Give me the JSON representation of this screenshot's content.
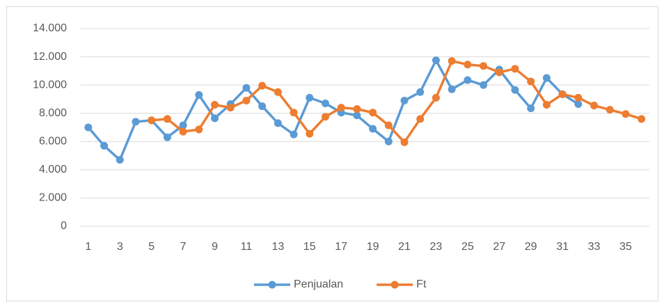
{
  "chart_data": {
    "type": "line",
    "categories": [
      "1",
      null,
      "3",
      null,
      "5",
      null,
      "7",
      null,
      "9",
      null,
      "11",
      null,
      "13",
      null,
      "15",
      null,
      "17",
      null,
      "19",
      null,
      "21",
      null,
      "23",
      null,
      "25",
      null,
      "27",
      null,
      "29",
      null,
      "31",
      null,
      "33",
      null,
      "35",
      null
    ],
    "series": [
      {
        "name": "Penjualan",
        "color": "#5b9bd5",
        "values": [
          7000,
          5700,
          4700,
          7400,
          7500,
          6300,
          7150,
          9300,
          7650,
          8650,
          9800,
          8500,
          7300,
          6500,
          9100,
          8700,
          8050,
          7850,
          6900,
          6000,
          8900,
          9500,
          11750,
          9700,
          10350,
          10000,
          11100,
          9650,
          8350,
          10500,
          9350,
          8650,
          null,
          null,
          null,
          null
        ]
      },
      {
        "name": "Ft",
        "color": "#ed7d31",
        "values": [
          null,
          null,
          null,
          null,
          7500,
          7600,
          6700,
          6850,
          8600,
          8400,
          8900,
          9950,
          9500,
          8050,
          6550,
          7750,
          8400,
          8300,
          8050,
          7150,
          5950,
          7600,
          9100,
          11700,
          11450,
          11350,
          10900,
          11150,
          10250,
          8600,
          9350,
          9100,
          8550,
          8250,
          7950,
          7600
        ]
      }
    ],
    "ylim": [
      0,
      14000
    ],
    "yticks": [
      0,
      {
        "value": 2000,
        "label": "2.000"
      },
      {
        "value": 4000,
        "label": "4.000"
      },
      {
        "value": 6000,
        "label": "6.000"
      },
      {
        "value": 8000,
        "label": "8.000"
      },
      {
        "value": 10000,
        "label": "10.000"
      },
      {
        "value": 12000,
        "label": "12.000"
      },
      {
        "value": 14000,
        "label": "14.000"
      }
    ],
    "grid": true,
    "legend": "bottom"
  }
}
